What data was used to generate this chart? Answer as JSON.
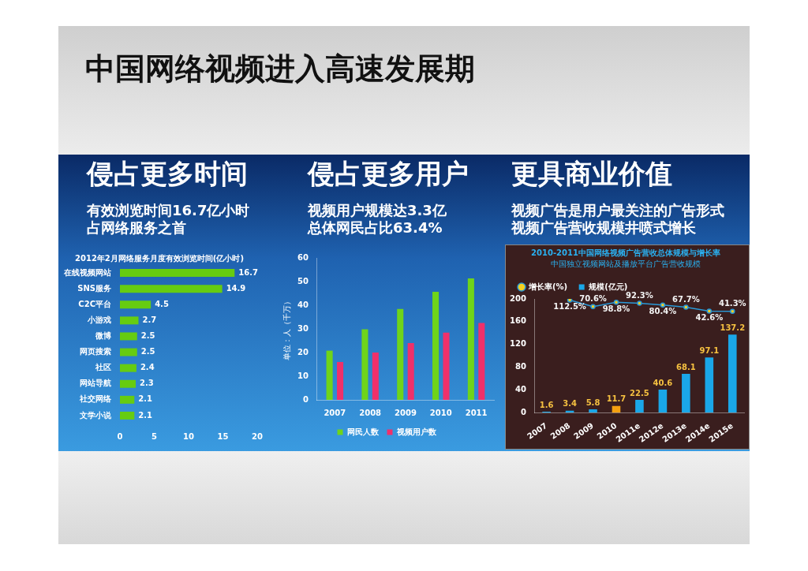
{
  "chart_data": [
    {
      "type": "bar",
      "orientation": "horizontal",
      "title": "2012年2月网络服务月度有效浏览时间(亿小时)",
      "annotations": [
        "中国网络视频进入高速发展期",
        "侵占更多时间",
        "有效浏览时间16.7亿小时",
        "占网络服务之首"
      ],
      "categories": [
        "在线视频网站",
        "SNS服务",
        "C2C平台",
        "小游戏",
        "微博",
        "网页搜索",
        "社区",
        "网站导航",
        "社交网络",
        "文学小说"
      ],
      "values": [
        16.7,
        14.9,
        4.5,
        2.7,
        2.5,
        2.5,
        2.4,
        2.3,
        2.1,
        2.1
      ],
      "color": "#66cc11",
      "xlim": [
        0,
        20
      ],
      "xticks": [
        0,
        5,
        10,
        15,
        20
      ],
      "grid": false,
      "legend": false,
      "data_labels": true
    },
    {
      "type": "bar",
      "annotations": [
        "侵占更多用户",
        "视频用户规模达3.3亿",
        "总体网民占比63.4%"
      ],
      "ylabel": "单位：人（千万）",
      "categories": [
        "2007",
        "2008",
        "2009",
        "2010",
        "2011"
      ],
      "series": [
        {
          "name": "网民人数",
          "color": "#6fd41a",
          "values": [
            20.8,
            29.8,
            38.4,
            45.7,
            51.3
          ]
        },
        {
          "name": "视频用户数",
          "color": "#f0306a",
          "values": [
            16.0,
            20.0,
            24.0,
            28.4,
            32.5
          ]
        }
      ],
      "ylim": [
        0,
        60
      ],
      "yticks": [
        0,
        10,
        20,
        30,
        40,
        50,
        60
      ],
      "grid": false,
      "legend": "bottom"
    },
    {
      "type": "bar",
      "title": "2010-2011中国网络视频广告营收总体规模与增长率",
      "subtitle": "中国独立视频网站及播放平台广告营收规模",
      "annotations": [
        "更具商业价值",
        "视频广告是用户最关注的广告形式",
        "视频广告营收规模井喷式增长"
      ],
      "categories": [
        "2007",
        "2008",
        "2009",
        "2010",
        "2011e",
        "2012e",
        "2013e",
        "2014e",
        "2015e"
      ],
      "series": [
        {
          "name": "规模(亿元)",
          "type": "bar",
          "colors": [
            "#1aa7e8",
            "#1aa7e8",
            "#1aa7e8",
            "#f5a010",
            "#1aa7e8",
            "#1aa7e8",
            "#1aa7e8",
            "#1aa7e8",
            "#1aa7e8"
          ],
          "values": [
            1.6,
            3.4,
            5.8,
            11.7,
            22.5,
            40.6,
            68.1,
            97.1,
            137.2
          ],
          "data_labels": true
        },
        {
          "name": "增长率(%)",
          "type": "line",
          "axis": "y2",
          "color": "#2a9ad8",
          "marker": "circle",
          "values": [
            null,
            112.5,
            70.6,
            98.8,
            92.3,
            80.4,
            67.7,
            42.6,
            41.3
          ],
          "value_labels": [
            null,
            "112.5%",
            "70.6%",
            "98.8%",
            "92.3%",
            "80.4%",
            "67.7%",
            "42.6%",
            "41.3%"
          ]
        }
      ],
      "ylim": [
        0,
        200
      ],
      "yticks": [
        0,
        40,
        80,
        120,
        160,
        200
      ],
      "grid": false,
      "legend": "top left"
    }
  ]
}
